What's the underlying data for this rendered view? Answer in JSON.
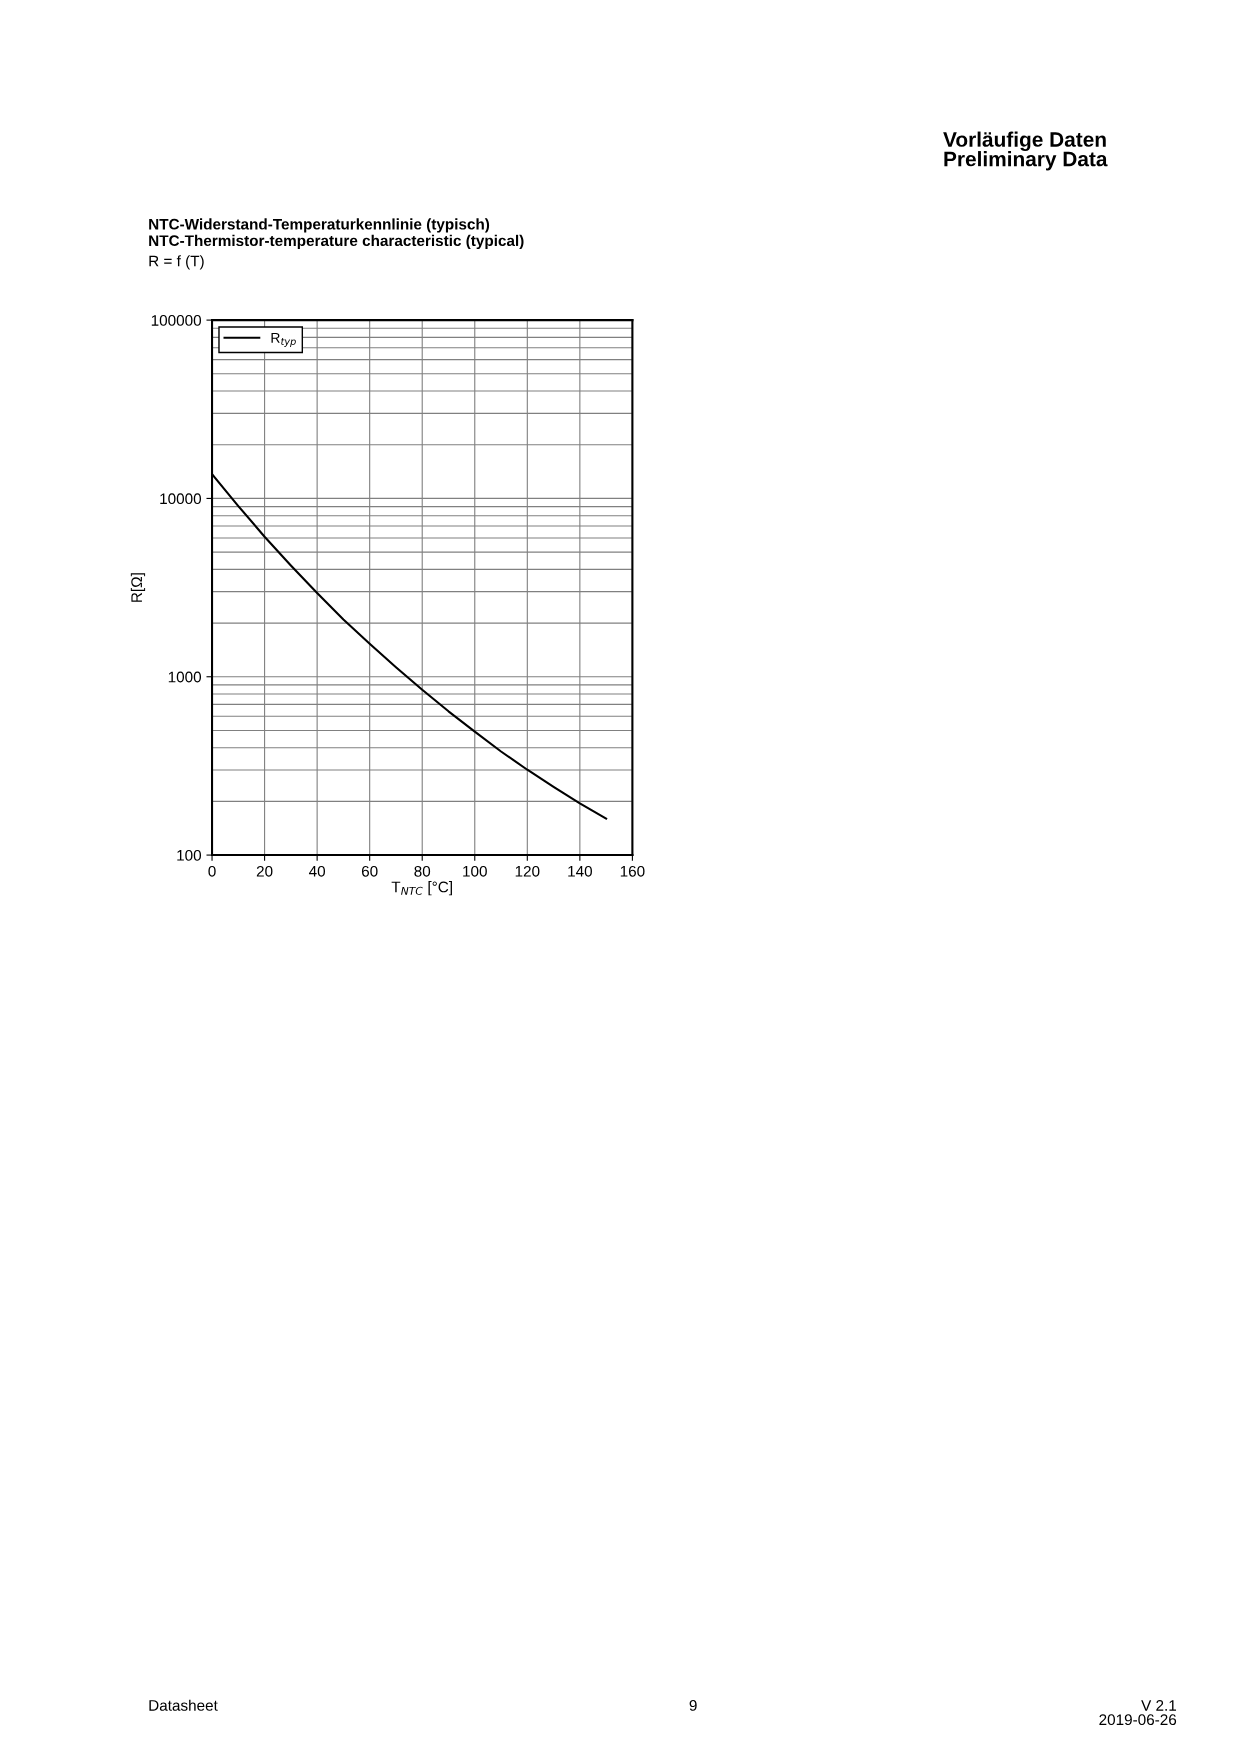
{
  "chart_data": {
    "type": "line",
    "title": "NTC-Widerstand-Temperaturkennlinie (typisch)\nNTC-Thermistor-temperature characteristic (typical)",
    "subtitle": "R = f (T)",
    "xlabel": "T$_{NTC}$ [°C]",
    "ylabel": "R[Ω]",
    "x": [
      0,
      10,
      20,
      30,
      40,
      50,
      60,
      70,
      80,
      90,
      100,
      110,
      120,
      130,
      140,
      150
    ],
    "series": [
      {
        "name": "R$_{typ}$",
        "color": "#000000",
        "values": [
          13700,
          9060,
          6100,
          4210,
          2950,
          2095,
          1530,
          1130,
          845,
          640,
          492,
          381,
          301,
          241,
          195,
          160
        ]
      }
    ],
    "log": "y",
    "xlim": [
      0,
      160
    ],
    "xticks": [
      0,
      20,
      40,
      60,
      80,
      100,
      120,
      140,
      160
    ],
    "ylim": [
      100,
      100000
    ],
    "yticks": [
      100,
      1000,
      10000,
      100000
    ],
    "grid": true,
    "legend": "top left",
    "marker": "none",
    "line_style": "solid",
    "annotations": [
      "Vorläufige Daten\nPreliminary Data",
      "Datasheet",
      "9",
      "V 2.1\n2019-06-26"
    ]
  }
}
